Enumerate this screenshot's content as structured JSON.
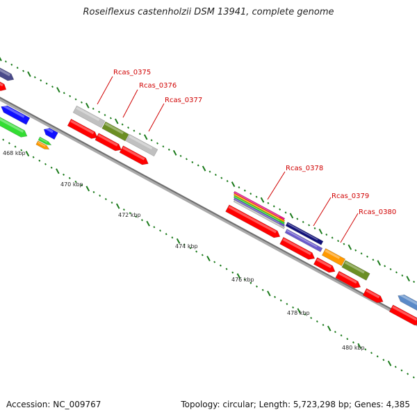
{
  "title": "Roseiflexus castenholzii DSM 13941, complete genome",
  "footer": {
    "accession": "Accession: NC_009767",
    "summary": "Topology: circular; Length: 5,723,298 bp; Genes: 4,385"
  },
  "scale_labels": [
    "468 kbp",
    "470 kbp",
    "472 kbp",
    "474 kbp",
    "476 kbp",
    "478 kbp",
    "480 kbp"
  ],
  "gene_labels": [
    "Rcas_0375",
    "Rcas_0376",
    "Rcas_0377",
    "Rcas_0378",
    "Rcas_0379",
    "Rcas_0380"
  ],
  "colors": {
    "backbone": "#7a7a7a",
    "tick": "#1a7a1a",
    "label_line": "#d00000",
    "cds": "#ff0000",
    "blue": "#1010ff",
    "green": "#33dd33",
    "grey": "#c0c0c0",
    "olive": "#6b8e23",
    "orange": "#ff9900",
    "navy": "#10107a",
    "purple": "#6a5acd",
    "magenta": "#ee1188",
    "steel": "#5a8ac8",
    "slate": "#4a4a8a"
  }
}
